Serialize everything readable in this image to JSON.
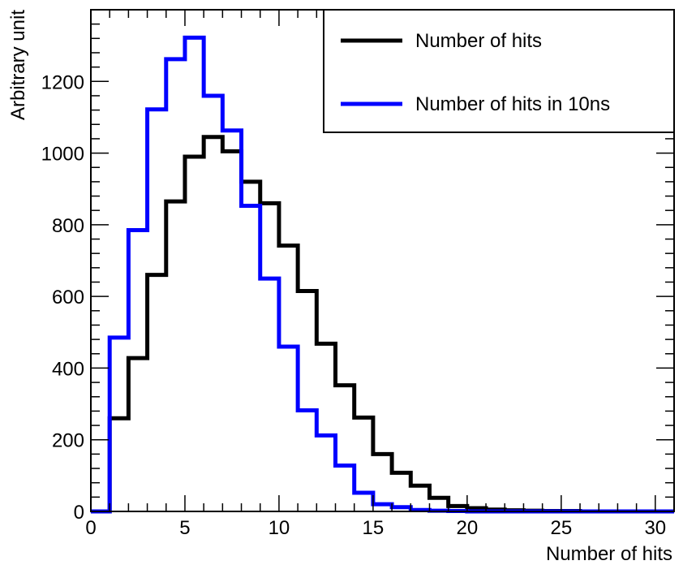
{
  "chart_data": {
    "type": "step-histogram",
    "xlabel": "Number of hits",
    "ylabel": "Arbitrary unit",
    "xlim": [
      0,
      31
    ],
    "ylim": [
      0,
      1400
    ],
    "xticks": [
      0,
      5,
      10,
      15,
      20,
      25,
      30
    ],
    "xtick_labels": [
      "0",
      "5",
      "10",
      "15",
      "20",
      "25",
      "30"
    ],
    "yticks": [
      0,
      200,
      400,
      600,
      800,
      1000,
      1200
    ],
    "ytick_labels": [
      "0",
      "200",
      "400",
      "600",
      "800",
      "1000",
      "1200"
    ],
    "bin_edges": [
      0,
      1,
      2,
      3,
      4,
      5,
      6,
      7,
      8,
      9,
      10,
      11,
      12,
      13,
      14,
      15,
      16,
      17,
      18,
      19,
      20,
      21,
      22,
      23,
      24,
      25,
      26,
      27,
      28,
      29,
      30,
      31
    ],
    "legend_position": "top-right",
    "series": [
      {
        "name": "Number of hits",
        "color": "#000000",
        "values": [
          0,
          260,
          428,
          660,
          865,
          990,
          1045,
          1005,
          920,
          860,
          742,
          615,
          468,
          352,
          262,
          160,
          108,
          72,
          38,
          15,
          9,
          5,
          3,
          2,
          1,
          1,
          0,
          0,
          0,
          0,
          0
        ]
      },
      {
        "name": "Number of hits in 10ns",
        "color": "#0000ff",
        "values": [
          0,
          485,
          785,
          1122,
          1262,
          1322,
          1160,
          1063,
          853,
          650,
          460,
          282,
          212,
          128,
          52,
          20,
          12,
          4,
          2,
          1,
          0,
          0,
          0,
          0,
          0,
          0,
          0,
          0,
          0,
          0,
          0
        ]
      }
    ]
  }
}
